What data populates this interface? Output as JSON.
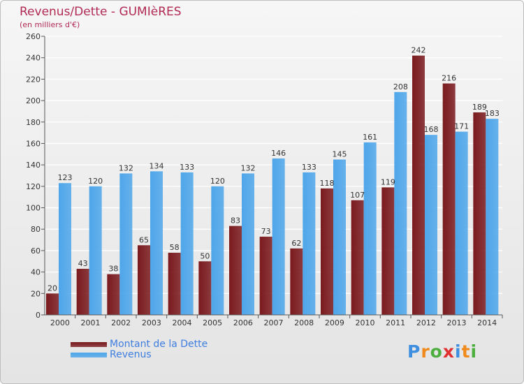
{
  "title": "Revenus/Dette - GUMIèRES",
  "subtitle": "(en milliers d'€)",
  "colors": {
    "dette": "#7a1a1e",
    "revenus": "#4ea6ea",
    "title": "#b12a54",
    "legend_text": "#3e7ee0"
  },
  "logo": {
    "text": "Proxiti",
    "letter_colors": [
      "#3e8fe0",
      "#f08a1c",
      "#4caf3e",
      "#e03030",
      "#3e8fe0",
      "#f08a1c",
      "#4caf3e"
    ]
  },
  "legend": {
    "items": [
      {
        "label": "Montant de la Dette",
        "color": "#7a1a1e"
      },
      {
        "label": "Revenus",
        "color": "#4ea6ea"
      }
    ]
  },
  "chart_data": {
    "type": "bar",
    "title": "Revenus/Dette - GUMIèRES",
    "subtitle": "(en milliers d'€)",
    "xlabel": "",
    "ylabel": "",
    "ylim": [
      0,
      260
    ],
    "yticks": [
      0,
      20,
      40,
      60,
      80,
      100,
      120,
      140,
      160,
      180,
      200,
      220,
      240,
      260
    ],
    "grid": true,
    "legend_position": "bottom-left",
    "categories": [
      "2000",
      "2001",
      "2002",
      "2003",
      "2004",
      "2005",
      "2006",
      "2007",
      "2008",
      "2009",
      "2010",
      "2011",
      "2012",
      "2013",
      "2014"
    ],
    "series": [
      {
        "name": "Montant de la Dette",
        "color": "#7a1a1e",
        "values": [
          20,
          43,
          38,
          65,
          58,
          50,
          83,
          73,
          62,
          118,
          107,
          119,
          242,
          216,
          189
        ]
      },
      {
        "name": "Revenus",
        "color": "#4ea6ea",
        "values": [
          123,
          120,
          132,
          134,
          133,
          120,
          132,
          146,
          133,
          145,
          161,
          208,
          168,
          171,
          183
        ]
      }
    ]
  }
}
